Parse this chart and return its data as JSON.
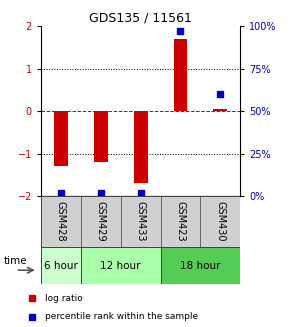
{
  "title": "GDS135 / 11561",
  "samples": [
    "GSM428",
    "GSM429",
    "GSM433",
    "GSM423",
    "GSM430"
  ],
  "log_ratios": [
    -1.3,
    -1.2,
    -1.7,
    1.7,
    0.05
  ],
  "percentile_ranks": [
    2.0,
    2.0,
    2.0,
    97.0,
    60.0
  ],
  "ylim": [
    -2,
    2
  ],
  "yticks_left": [
    -2,
    -1,
    0,
    1,
    2
  ],
  "right_yticks": [
    0,
    25,
    50,
    75,
    100
  ],
  "bar_color": "#cc0000",
  "dot_color": "#0000cc",
  "time_groups": [
    {
      "label": "6 hour",
      "samples": [
        "GSM428"
      ],
      "color": "#ccffcc"
    },
    {
      "label": "12 hour",
      "samples": [
        "GSM429",
        "GSM433"
      ],
      "color": "#aaffaa"
    },
    {
      "label": "18 hour",
      "samples": [
        "GSM423",
        "GSM430"
      ],
      "color": "#55cc55"
    }
  ],
  "legend_log_ratio": "log ratio",
  "legend_percentile": "percentile rank within the sample",
  "time_label": "time",
  "bar_width": 0.35,
  "title_fontsize": 9,
  "tick_fontsize": 7,
  "sample_fontsize": 7,
  "time_fontsize": 7.5,
  "legend_fontsize": 6.5
}
